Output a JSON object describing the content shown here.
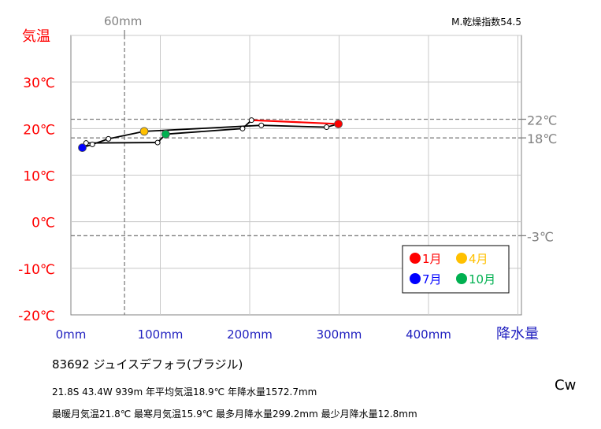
{
  "chart_data": {
    "type": "line",
    "title": "83692 ジュイスデフォラ(ブラジル)",
    "xlabel": "降水量",
    "ylabel": "気温",
    "xlim": [
      0,
      500
    ],
    "ylim": [
      -20,
      40
    ],
    "x_ticks": [
      "0mm",
      "100mm",
      "200mm",
      "300mm",
      "400mm"
    ],
    "y_ticks": [
      "-20℃",
      "-10℃",
      "0℃",
      "10℃",
      "20℃",
      "30℃"
    ],
    "grid": true,
    "aridity_label": "M.乾燥指数54.5",
    "reference_lines_temp": [
      {
        "value": 22,
        "label": "22℃"
      },
      {
        "value": 18,
        "label": "18℃"
      },
      {
        "value": -3,
        "label": "-3℃"
      }
    ],
    "reference_line_precip": {
      "value": 60,
      "label": "60mm"
    },
    "series": [
      {
        "months": [
          1,
          2,
          3,
          4,
          5,
          6,
          7,
          8,
          9,
          10,
          11,
          12
        ],
        "precipitation": [
          299.2,
          286.0,
          213.0,
          82.0,
          42.0,
          24.0,
          12.8,
          17.0,
          97.0,
          106.0,
          192.0,
          202.0
        ],
        "temperature": [
          21.0,
          20.3,
          20.7,
          19.4,
          17.8,
          16.6,
          15.9,
          16.9,
          17.0,
          18.8,
          20.0,
          21.8
        ]
      }
    ],
    "highlighted_months": [
      {
        "label": "1月",
        "month": 1,
        "color": "#ff0000"
      },
      {
        "label": "4月",
        "month": 4,
        "color": "#ffc000"
      },
      {
        "label": "7月",
        "month": 7,
        "color": "#0000ff"
      },
      {
        "label": "10月",
        "month": 10,
        "color": "#00b050"
      }
    ],
    "legend_position": "bottom-right"
  },
  "station": {
    "title": "83692  ジュイスデフォラ(ブラジル)",
    "info_line1": "21.8S  43.4W 939m  年平均気温18.9℃ 年降水量1572.7mm",
    "info_line2": "最暖月気温21.8℃ 最寒月気温15.9℃ 最多月降水量299.2mm 最少月降水量12.8mm",
    "climate_code": "Cw"
  },
  "colors": {
    "temp_axis": "#ff0000",
    "precip_axis": "#1f1fbf",
    "reference": "#808080",
    "grid": "#c8c8c8"
  }
}
